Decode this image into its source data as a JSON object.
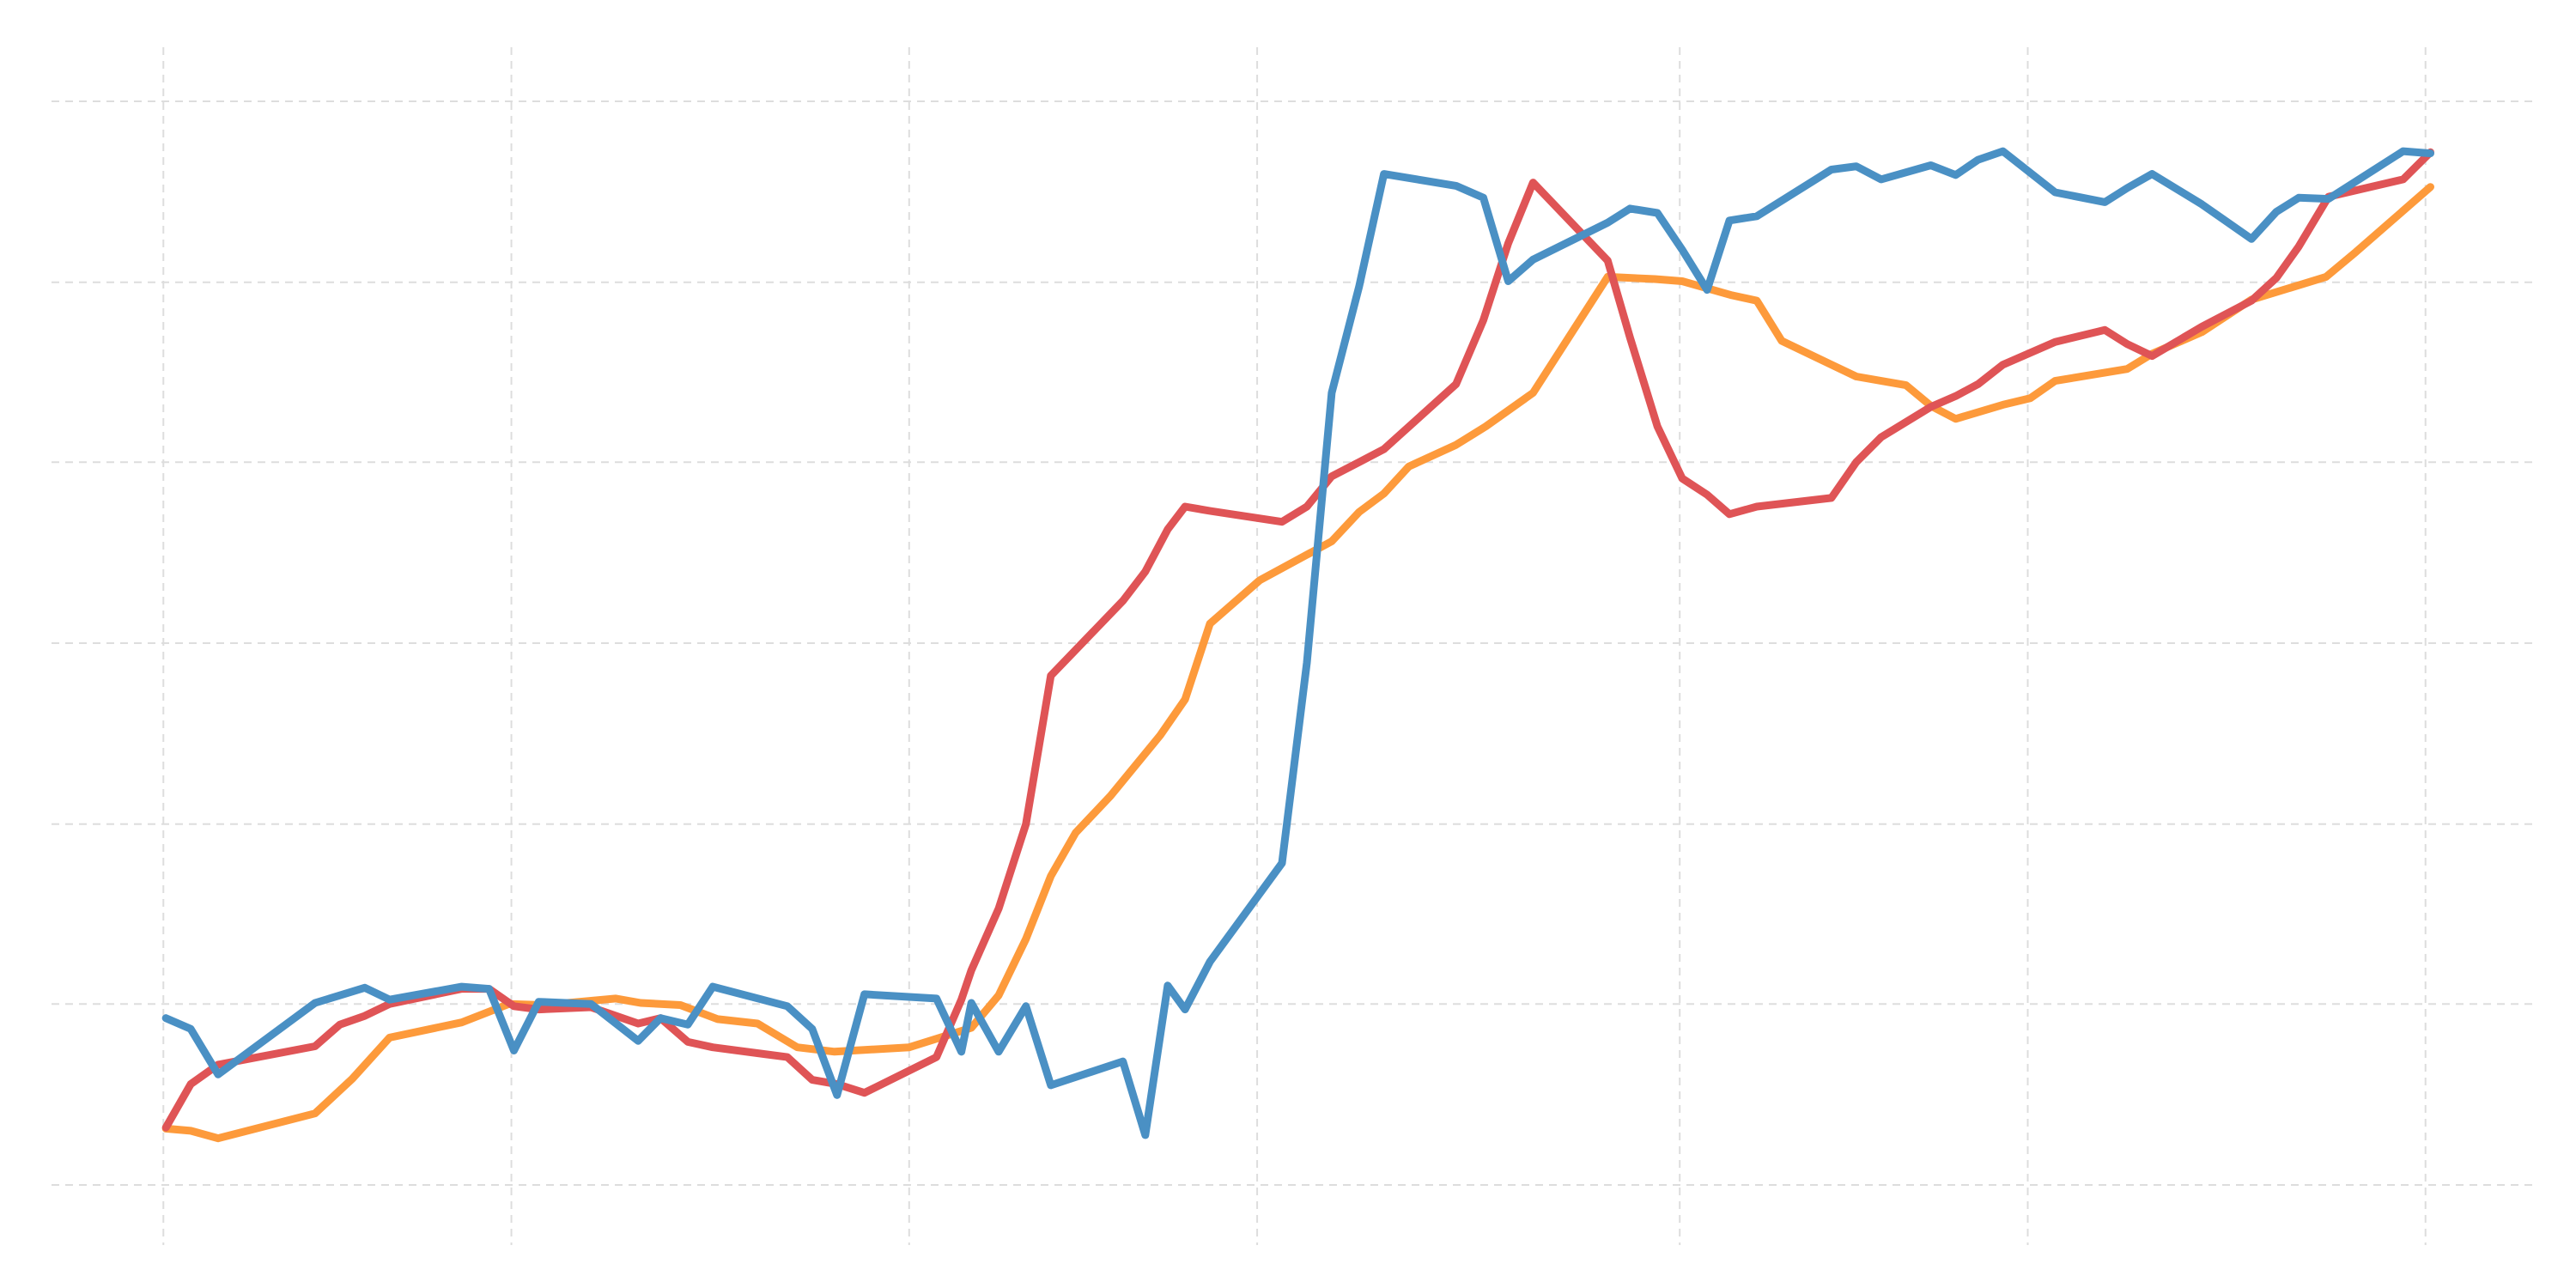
{
  "chart_data": {
    "type": "line",
    "title": "",
    "xlabel": "",
    "ylabel": "",
    "grid": true,
    "legend": "none",
    "xlim": [
      0,
      100
    ],
    "ylim": [
      0,
      100
    ],
    "x_gridlines": [
      4.5,
      18.5,
      34.5,
      48.5,
      65.5,
      79.5,
      95.5
    ],
    "y_gridlines": [
      0,
      16.7,
      33.3,
      50,
      66.7,
      83.3,
      100
    ],
    "colors": {
      "blue": "#4a90c4",
      "red": "#df5456",
      "orange": "#fd9a3b",
      "grid": "#dddddd"
    },
    "series": [
      {
        "color": "#fd9a3b",
        "x": [
          4.6,
          5.6,
          6.7,
          10.6,
          12.1,
          13.6,
          16.5,
          18.4,
          19.8,
          22.7,
          23.7,
          25.3,
          26.8,
          28.4,
          30.0,
          31.5,
          34.5,
          37.0,
          38.1,
          39.2,
          40.2,
          41.2,
          42.6,
          44.6,
          45.6,
          46.6,
          48.6,
          51.5,
          52.6,
          53.6,
          54.6,
          56.5,
          57.7,
          59.6,
          62.6,
          64.5,
          65.6,
          67.6,
          68.6,
          69.6,
          71.6,
          72.6,
          74.6,
          75.6,
          76.6,
          78.5,
          79.6,
          80.6,
          83.5,
          84.5,
          86.5,
          88.5,
          90.5,
          91.5,
          92.7,
          95.7
        ],
        "y": [
          5.2,
          5.0,
          4.3,
          6.6,
          9.8,
          13.6,
          15.0,
          16.7,
          16.6,
          17.2,
          16.8,
          16.6,
          15.3,
          14.9,
          12.7,
          12.3,
          12.7,
          14.5,
          17.5,
          22.7,
          28.5,
          32.5,
          35.9,
          41.5,
          44.8,
          51.8,
          55.8,
          59.4,
          62.1,
          63.8,
          66.3,
          68.3,
          70.0,
          73.1,
          83.8,
          83.6,
          83.4,
          82.1,
          81.6,
          77.9,
          75.7,
          74.6,
          73.8,
          71.9,
          70.7,
          72.0,
          72.6,
          74.2,
          75.3,
          76.7,
          78.7,
          81.7,
          83.1,
          83.8,
          86.1,
          92.1
        ]
      },
      {
        "color": "#df5456",
        "x": [
          4.6,
          5.6,
          6.7,
          10.6,
          11.6,
          12.6,
          13.6,
          16.5,
          17.6,
          18.6,
          19.6,
          21.7,
          23.6,
          24.5,
          25.6,
          26.6,
          29.6,
          30.6,
          31.6,
          32.7,
          35.6,
          36.6,
          37.0,
          38.1,
          39.2,
          40.2,
          43.1,
          44.0,
          44.9,
          45.6,
          46.6,
          49.5,
          50.5,
          51.5,
          52.6,
          53.6,
          56.5,
          57.6,
          58.6,
          59.6,
          62.6,
          63.5,
          64.6,
          65.6,
          66.6,
          67.5,
          68.6,
          71.6,
          72.6,
          73.6,
          75.6,
          76.6,
          77.5,
          78.5,
          80.6,
          82.6,
          83.5,
          84.5,
          86.5,
          88.5,
          89.5,
          90.4,
          91.6,
          94.6,
          95.7
        ],
        "y": [
          5.3,
          9.3,
          11.1,
          12.8,
          14.8,
          15.6,
          16.7,
          18.1,
          18.1,
          16.5,
          16.2,
          16.4,
          14.9,
          15.4,
          13.2,
          12.7,
          11.8,
          9.7,
          9.3,
          8.5,
          11.8,
          17.1,
          19.8,
          25.5,
          33.3,
          47.0,
          53.9,
          56.6,
          60.5,
          62.6,
          62.2,
          61.2,
          62.6,
          65.4,
          66.7,
          67.9,
          73.9,
          79.8,
          86.9,
          92.5,
          85.3,
          78.2,
          70.0,
          65.2,
          63.7,
          61.9,
          62.6,
          63.4,
          66.7,
          69.0,
          71.8,
          72.8,
          73.9,
          75.7,
          77.8,
          78.9,
          77.6,
          76.5,
          79.2,
          81.6,
          83.7,
          86.6,
          91.2,
          92.8,
          95.3
        ]
      },
      {
        "color": "#4a90c4",
        "x": [
          4.6,
          5.6,
          6.7,
          10.6,
          11.6,
          12.6,
          13.6,
          16.5,
          17.6,
          18.6,
          19.6,
          21.7,
          23.6,
          24.5,
          25.6,
          26.6,
          29.6,
          30.6,
          31.6,
          32.7,
          35.6,
          36.6,
          37.0,
          38.1,
          39.2,
          40.2,
          43.1,
          44.0,
          44.9,
          45.6,
          46.6,
          49.5,
          50.5,
          51.5,
          52.6,
          53.6,
          56.5,
          57.6,
          58.6,
          59.6,
          62.6,
          63.5,
          64.6,
          65.6,
          66.6,
          67.5,
          68.6,
          71.6,
          72.6,
          73.6,
          75.6,
          76.6,
          77.5,
          78.5,
          80.6,
          82.6,
          83.5,
          84.5,
          86.5,
          88.5,
          89.5,
          90.4,
          91.6,
          94.6,
          95.7
        ],
        "y": [
          15.4,
          14.4,
          10.2,
          16.8,
          17.5,
          18.2,
          17.1,
          18.3,
          18.1,
          12.4,
          16.9,
          16.7,
          13.3,
          15.4,
          14.8,
          18.3,
          16.5,
          14.4,
          8.3,
          17.6,
          17.2,
          12.3,
          16.8,
          12.3,
          16.5,
          9.2,
          11.4,
          4.6,
          18.4,
          16.2,
          20.6,
          29.7,
          48.2,
          73.1,
          82.9,
          93.3,
          92.2,
          91.1,
          83.4,
          85.4,
          88.8,
          90.1,
          89.7,
          86.3,
          82.6,
          89.0,
          89.4,
          93.7,
          94.0,
          92.8,
          94.1,
          93.2,
          94.6,
          95.4,
          91.6,
          90.7,
          92.0,
          93.3,
          90.5,
          87.3,
          89.8,
          91.1,
          91.0,
          95.4,
          95.2
        ]
      }
    ]
  }
}
